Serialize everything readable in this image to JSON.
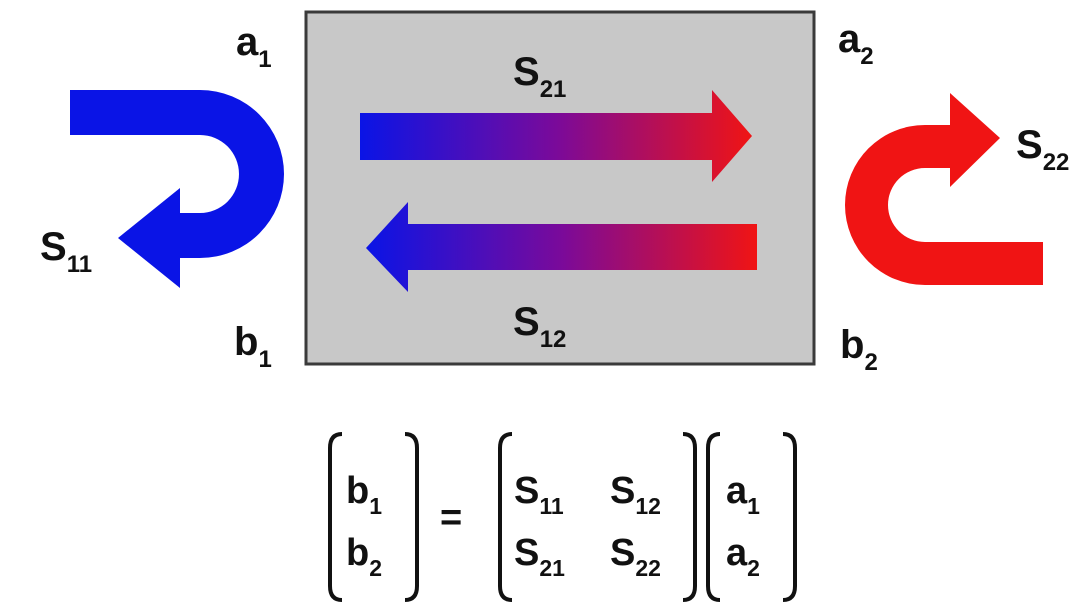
{
  "colors": {
    "box_fill": "#c8c8c8",
    "box_border": "#3a3a3a",
    "blue": "#0a14e6",
    "red": "#f01414",
    "text": "#111111"
  },
  "icons": {
    "s11_arrow": "u-turn-arrow-left-blue",
    "s22_arrow": "u-turn-arrow-right-red",
    "s21_arrow": "gradient-arrow-right",
    "s12_arrow": "gradient-arrow-left"
  },
  "ports": {
    "a1": {
      "base": "a",
      "sub": "1"
    },
    "b1": {
      "base": "b",
      "sub": "1"
    },
    "a2": {
      "base": "a",
      "sub": "2"
    },
    "b2": {
      "base": "b",
      "sub": "2"
    }
  },
  "params": {
    "s11": {
      "base": "S",
      "sub": "11"
    },
    "s21": {
      "base": "S",
      "sub": "21"
    },
    "s12": {
      "base": "S",
      "sub": "12"
    },
    "s22": {
      "base": "S",
      "sub": "22"
    }
  },
  "equation": {
    "equals": "=",
    "lhs": [
      {
        "base": "b",
        "sub": "1"
      },
      {
        "base": "b",
        "sub": "2"
      }
    ],
    "matrix": [
      [
        {
          "base": "S",
          "sub": "11"
        },
        {
          "base": "S",
          "sub": "12"
        }
      ],
      [
        {
          "base": "S",
          "sub": "21"
        },
        {
          "base": "S",
          "sub": "22"
        }
      ]
    ],
    "rhs": [
      {
        "base": "a",
        "sub": "1"
      },
      {
        "base": "a",
        "sub": "2"
      }
    ]
  }
}
